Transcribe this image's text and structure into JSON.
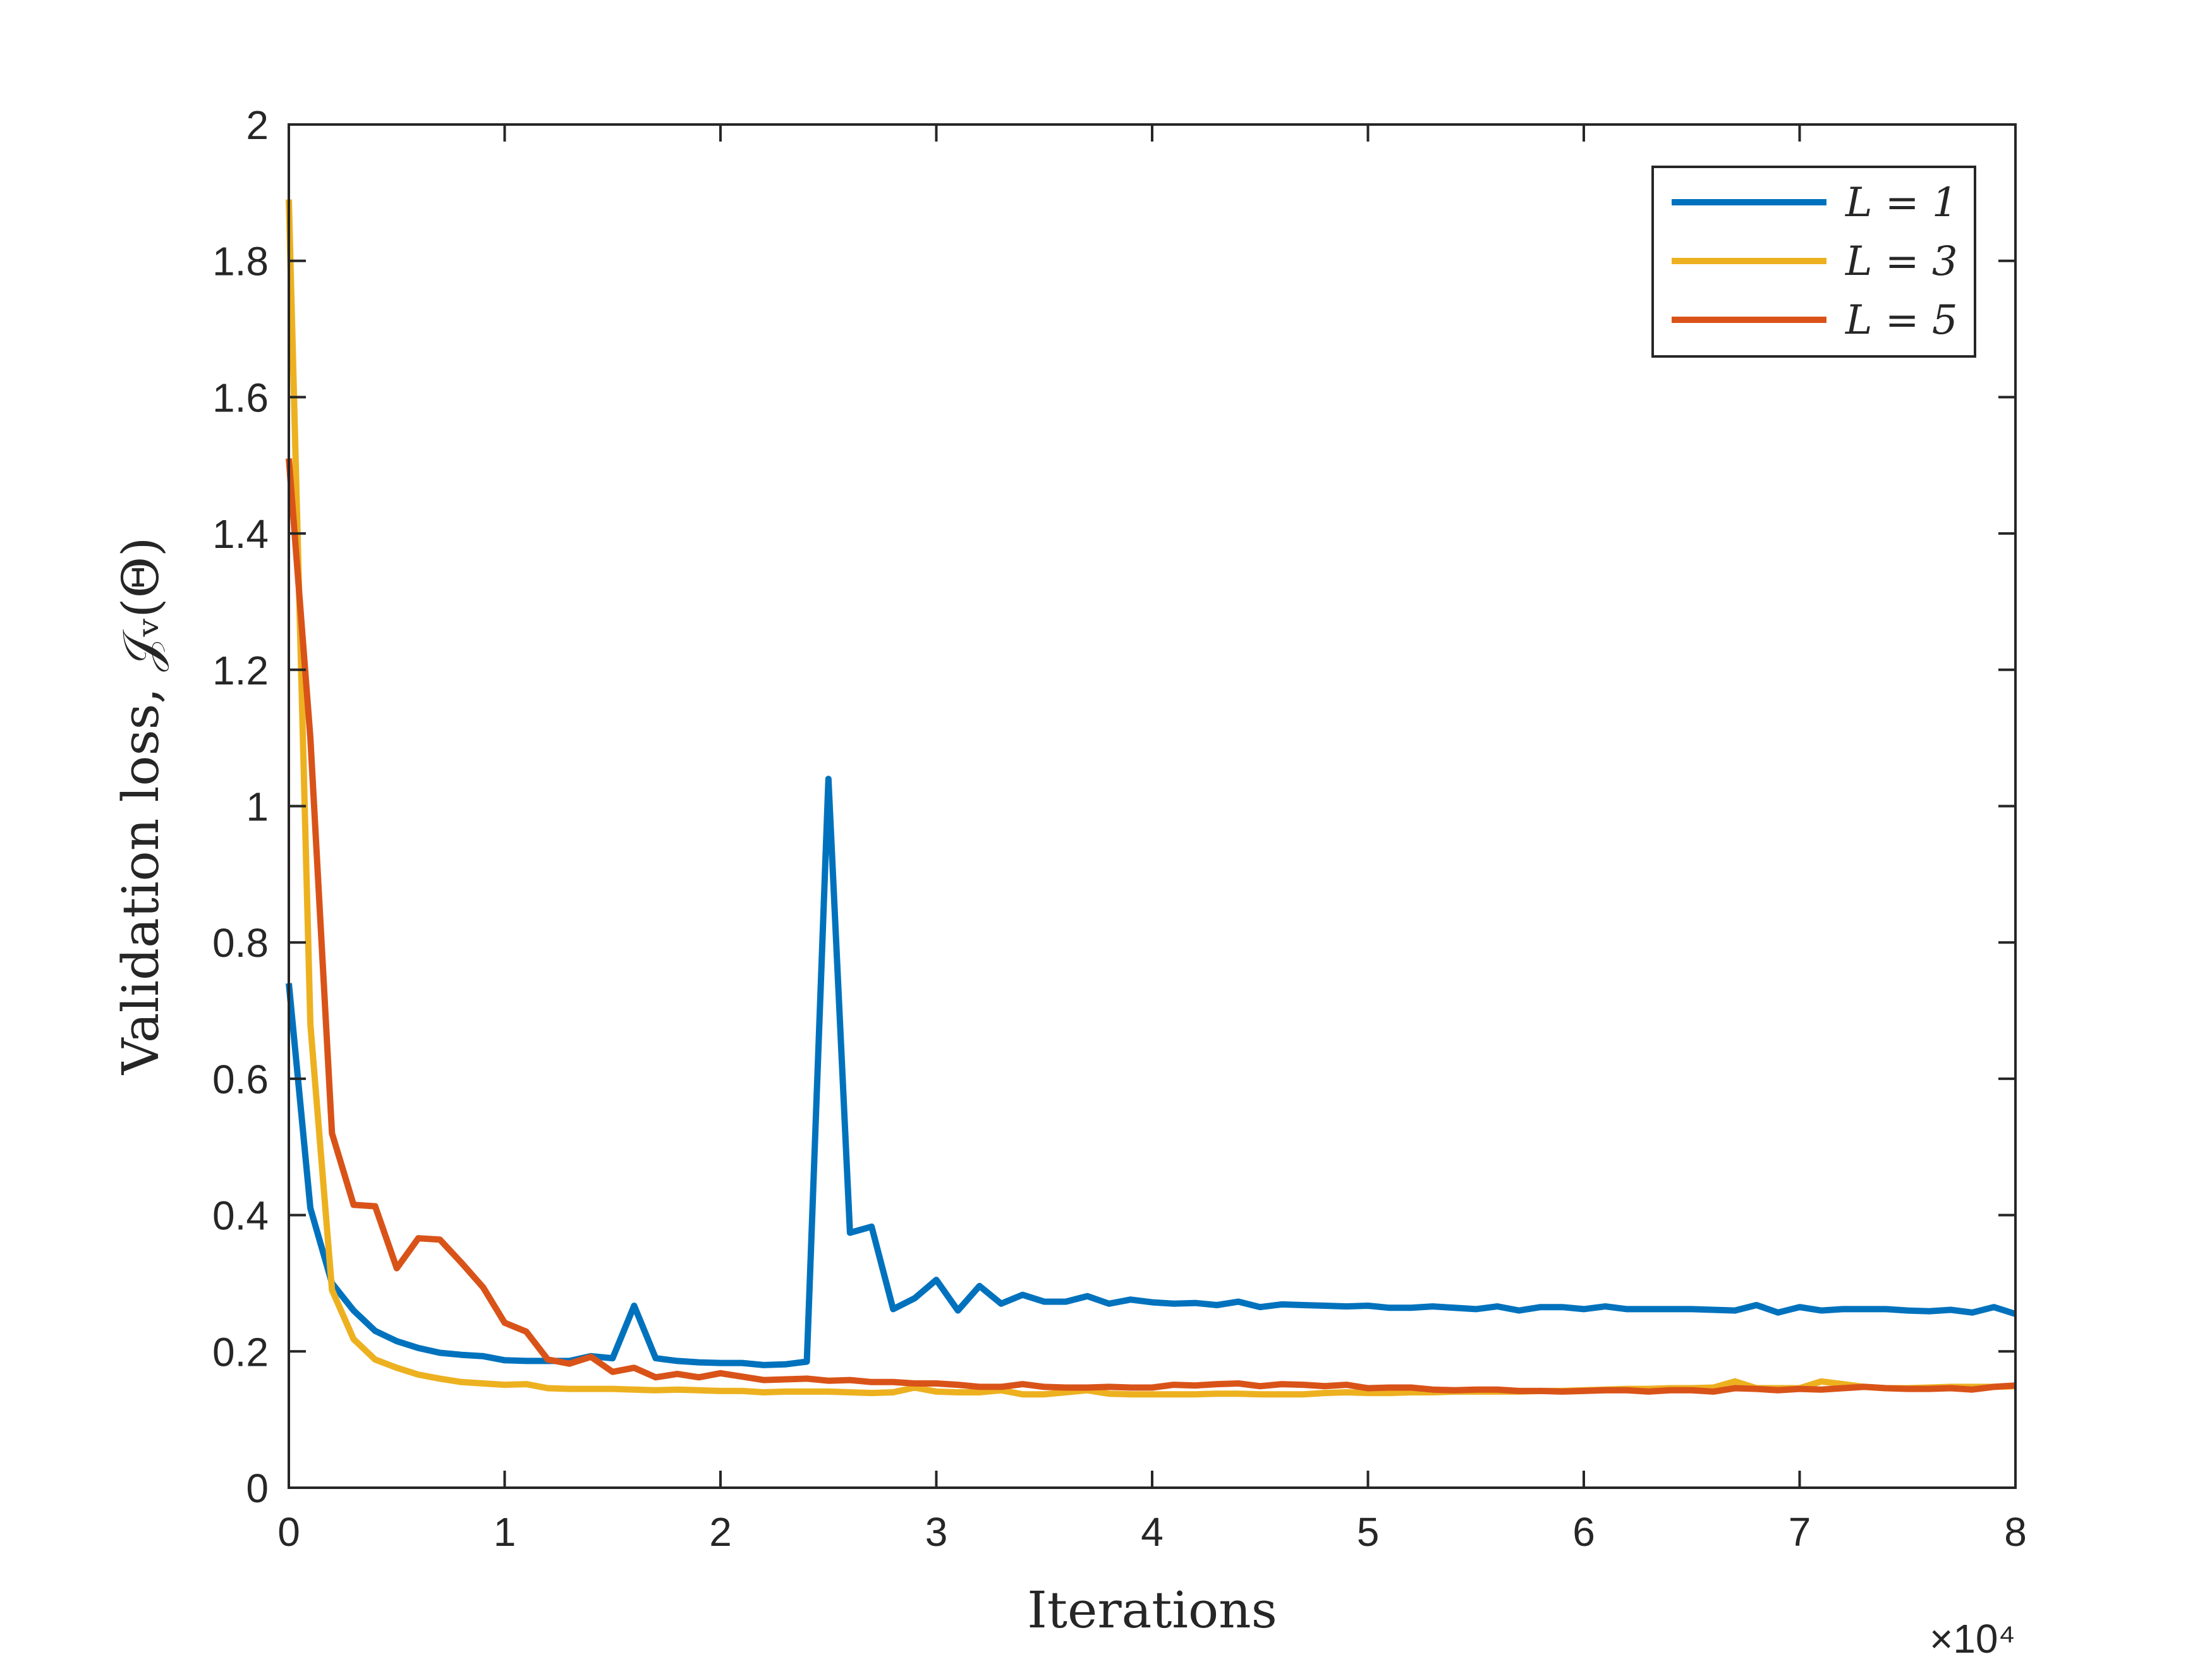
{
  "chart_data": {
    "type": "line",
    "title": "",
    "xlabel": "Iterations",
    "ylabel": "Validation loss, 𝒥ᵥ(Θ)",
    "x_exponent_label": "×10⁴",
    "xlim": [
      0,
      8
    ],
    "ylim": [
      0,
      2
    ],
    "xticks": [
      "0",
      "1",
      "2",
      "3",
      "4",
      "5",
      "6",
      "7",
      "8"
    ],
    "yticks": [
      "0",
      "0.2",
      "0.4",
      "0.6",
      "0.8",
      "1",
      "1.2",
      "1.4",
      "1.6",
      "1.8",
      "2"
    ],
    "grid": false,
    "legend_position": "top-right",
    "x": [
      0,
      0.1,
      0.2,
      0.3,
      0.4,
      0.5,
      0.6,
      0.7,
      0.8,
      0.9,
      1.0,
      1.1,
      1.2,
      1.3,
      1.4,
      1.5,
      1.6,
      1.7,
      1.8,
      1.9,
      2.0,
      2.1,
      2.2,
      2.3,
      2.4,
      2.5,
      2.6,
      2.7,
      2.8,
      2.9,
      3.0,
      3.1,
      3.2,
      3.3,
      3.4,
      3.5,
      3.6,
      3.7,
      3.8,
      3.9,
      4.0,
      4.1,
      4.2,
      4.3,
      4.4,
      4.5,
      4.6,
      4.7,
      4.8,
      4.9,
      5.0,
      5.1,
      5.2,
      5.3,
      5.4,
      5.5,
      5.6,
      5.7,
      5.8,
      5.9,
      6.0,
      6.1,
      6.2,
      6.3,
      6.4,
      6.5,
      6.6,
      6.7,
      6.8,
      6.9,
      7.0,
      7.1,
      7.2,
      7.3,
      7.4,
      7.5,
      7.6,
      7.7,
      7.8,
      7.9,
      8.0
    ],
    "series": [
      {
        "name": "L = 1",
        "color": "#0072BD",
        "values": [
          0.74,
          0.41,
          0.3,
          0.26,
          0.23,
          0.215,
          0.205,
          0.198,
          0.195,
          0.193,
          0.187,
          0.186,
          0.186,
          0.186,
          0.193,
          0.19,
          0.267,
          0.19,
          0.186,
          0.184,
          0.183,
          0.183,
          0.18,
          0.181,
          0.185,
          1.04,
          0.374,
          0.383,
          0.262,
          0.278,
          0.305,
          0.26,
          0.296,
          0.27,
          0.283,
          0.273,
          0.273,
          0.281,
          0.27,
          0.276,
          0.272,
          0.27,
          0.271,
          0.268,
          0.273,
          0.265,
          0.269,
          0.268,
          0.267,
          0.266,
          0.267,
          0.264,
          0.264,
          0.266,
          0.264,
          0.262,
          0.266,
          0.26,
          0.265,
          0.265,
          0.262,
          0.266,
          0.262,
          0.262,
          0.262,
          0.262,
          0.261,
          0.26,
          0.268,
          0.257,
          0.265,
          0.26,
          0.262,
          0.262,
          0.262,
          0.26,
          0.259,
          0.261,
          0.257,
          0.265,
          0.255
        ]
      },
      {
        "name": "L = 3",
        "color": "#EDB120",
        "values": [
          1.89,
          0.68,
          0.29,
          0.218,
          0.188,
          0.176,
          0.166,
          0.16,
          0.155,
          0.153,
          0.151,
          0.152,
          0.146,
          0.145,
          0.145,
          0.145,
          0.144,
          0.143,
          0.144,
          0.143,
          0.142,
          0.142,
          0.14,
          0.141,
          0.141,
          0.141,
          0.14,
          0.139,
          0.14,
          0.147,
          0.141,
          0.14,
          0.14,
          0.143,
          0.137,
          0.137,
          0.14,
          0.143,
          0.138,
          0.137,
          0.137,
          0.137,
          0.137,
          0.138,
          0.138,
          0.137,
          0.137,
          0.137,
          0.139,
          0.14,
          0.139,
          0.139,
          0.14,
          0.14,
          0.141,
          0.141,
          0.141,
          0.141,
          0.142,
          0.142,
          0.143,
          0.144,
          0.145,
          0.145,
          0.146,
          0.146,
          0.147,
          0.156,
          0.146,
          0.146,
          0.146,
          0.156,
          0.152,
          0.148,
          0.146,
          0.146,
          0.147,
          0.148,
          0.148,
          0.148,
          0.149
        ]
      },
      {
        "name": "L = 5",
        "color": "#D95319",
        "values": [
          1.51,
          1.1,
          0.52,
          0.415,
          0.413,
          0.322,
          0.366,
          0.364,
          0.33,
          0.294,
          0.242,
          0.229,
          0.188,
          0.182,
          0.192,
          0.17,
          0.176,
          0.162,
          0.167,
          0.162,
          0.168,
          0.163,
          0.158,
          0.159,
          0.16,
          0.157,
          0.158,
          0.155,
          0.155,
          0.153,
          0.153,
          0.151,
          0.148,
          0.148,
          0.152,
          0.148,
          0.147,
          0.147,
          0.148,
          0.147,
          0.147,
          0.151,
          0.15,
          0.152,
          0.153,
          0.149,
          0.152,
          0.151,
          0.149,
          0.151,
          0.146,
          0.147,
          0.147,
          0.144,
          0.143,
          0.144,
          0.144,
          0.142,
          0.142,
          0.141,
          0.142,
          0.143,
          0.143,
          0.141,
          0.143,
          0.143,
          0.141,
          0.146,
          0.145,
          0.143,
          0.145,
          0.144,
          0.146,
          0.148,
          0.146,
          0.145,
          0.145,
          0.146,
          0.144,
          0.148,
          0.15
        ]
      }
    ]
  }
}
